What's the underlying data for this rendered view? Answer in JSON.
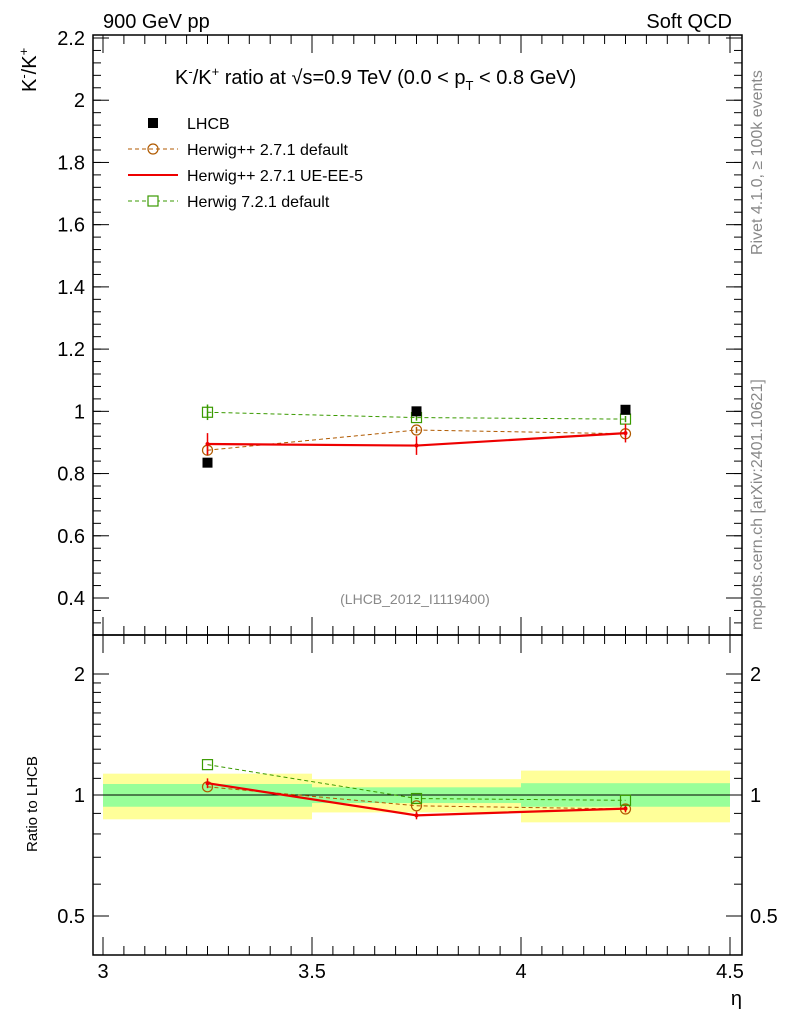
{
  "header": {
    "left_label": "900 GeV pp",
    "right_label": "Soft QCD"
  },
  "side_labels": {
    "rivet": "Rivet 4.1.0, ≥ 100k events",
    "mcplots": "mcplots.cern.ch [arXiv:2401.10621]"
  },
  "chart_data": [
    {
      "type": "scatter",
      "panel": "main",
      "title_prefix": "K",
      "title_sup1": "-",
      "title_mid": "/K",
      "title_sup2": "+",
      "title_mid2": " ratio at ",
      "title_sqrt": "√",
      "title_s": "s",
      "title_mid3": "=0.9 TeV (0.0 < p",
      "title_sub": "T",
      "title_suffix": " < 0.8 GeV)",
      "ylabel_base": "K",
      "ylabel_sup1": "-",
      "ylabel_mid": "/K",
      "ylabel_sup2": "+",
      "xlabel": "η",
      "xlim": [
        3.0,
        4.5
      ],
      "ylim": [
        0.3,
        2.2
      ],
      "y_ticks": [
        0.4,
        0.6,
        0.8,
        1.0,
        1.2,
        1.4,
        1.6,
        1.8,
        2.0,
        2.2
      ],
      "y_tick_labels": [
        "0.4",
        "0.6",
        "0.8",
        "1",
        "1.2",
        "1.4",
        "1.6",
        "1.8",
        "2",
        "2.2"
      ],
      "watermark": "(LHCB_2012_I1119400)",
      "legend": [
        {
          "label": "LHCB",
          "marker": "filled-square",
          "color": "#000000",
          "line": "none"
        },
        {
          "label": "Herwig++ 2.7.1 default",
          "marker": "open-circle",
          "color": "#b05a00",
          "line": "dashed"
        },
        {
          "label": "Herwig++ 2.7.1 UE-EE-5",
          "marker": "none",
          "color": "#ee0000",
          "line": "solid"
        },
        {
          "label": "Herwig 7.2.1 default",
          "marker": "open-square",
          "color": "#3a9a00",
          "line": "dashed"
        }
      ],
      "x": [
        3.25,
        3.75,
        4.25
      ],
      "series": [
        {
          "name": "LHCB",
          "values": [
            0.835,
            1.0,
            1.005
          ],
          "errors": [
            0.005,
            0.005,
            0.005
          ]
        },
        {
          "name": "Herwig++ 2.7.1 default",
          "values": [
            0.875,
            0.94,
            0.928
          ],
          "errors": [
            0.015,
            0.01,
            0.01
          ]
        },
        {
          "name": "Herwig++ 2.7.1 UE-EE-5",
          "values": [
            0.895,
            0.89,
            0.93
          ],
          "errors": [
            0.035,
            0.03,
            0.03
          ]
        },
        {
          "name": "Herwig 7.2.1 default",
          "values": [
            0.997,
            0.98,
            0.975
          ],
          "errors": [
            0.025,
            0.01,
            0.01
          ]
        }
      ]
    },
    {
      "type": "scatter",
      "panel": "ratio",
      "ylabel": "Ratio to LHCB",
      "xlim": [
        3.0,
        4.5
      ],
      "ylim": [
        0.4,
        2.5
      ],
      "y_scale": "log",
      "y_ticks": [
        0.5,
        1,
        2
      ],
      "y_tick_labels": [
        "0.5",
        "1",
        "2"
      ],
      "x_ticks": [
        3.0,
        3.5,
        4.0,
        4.5
      ],
      "x_tick_labels": [
        "3",
        "3.5",
        "4",
        "4.5"
      ],
      "bands": [
        {
          "x_range": [
            3.0,
            3.5
          ],
          "inner": [
            0.935,
            1.065
          ],
          "outer": [
            0.87,
            1.13
          ]
        },
        {
          "x_range": [
            3.5,
            4.0
          ],
          "inner": [
            0.955,
            1.045
          ],
          "outer": [
            0.905,
            1.095
          ]
        },
        {
          "x_range": [
            4.0,
            4.5
          ],
          "inner": [
            0.935,
            1.07
          ],
          "outer": [
            0.855,
            1.15
          ]
        }
      ],
      "x": [
        3.25,
        3.75,
        4.25
      ],
      "series": [
        {
          "name": "Herwig++ 2.7.1 default",
          "values": [
            1.048,
            0.94,
            0.923
          ]
        },
        {
          "name": "Herwig++ 2.7.1 UE-EE-5",
          "values": [
            1.07,
            0.89,
            0.925
          ],
          "errors": [
            0.03,
            0.02,
            0.02
          ]
        },
        {
          "name": "Herwig 7.2.1 default",
          "values": [
            1.19,
            0.98,
            0.97
          ]
        }
      ]
    }
  ]
}
